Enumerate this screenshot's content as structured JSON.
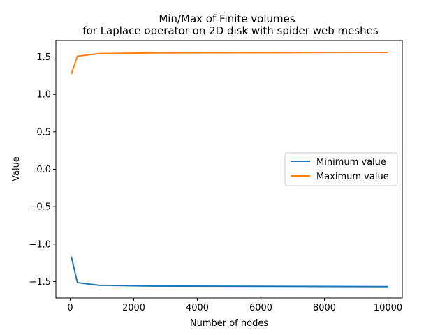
{
  "chart_data": {
    "type": "line",
    "title_line1": "Min/Max of Finite volumes",
    "title_line2": "for Laplace operator on 2D disk with spider web meshes",
    "xlabel": "Number of nodes",
    "ylabel": "Value",
    "xlim": [
      -450,
      10450
    ],
    "ylim": [
      -1.72,
      1.72
    ],
    "x_ticks": [
      0,
      2000,
      4000,
      6000,
      8000,
      10000
    ],
    "x_tick_labels": [
      "0",
      "2000",
      "4000",
      "6000",
      "8000",
      "10000"
    ],
    "y_ticks": [
      -1.5,
      -1.0,
      -0.5,
      0.0,
      0.5,
      1.0,
      1.5
    ],
    "y_tick_labels": [
      "−1.5",
      "−1.0",
      "−0.5",
      "0.0",
      "0.5",
      "1.0",
      "1.5"
    ],
    "legend_position": "center-right",
    "grid": false,
    "series": [
      {
        "name": "Minimum value",
        "color": "#1f77b4",
        "x": [
          36,
          225,
          900,
          2500,
          10000
        ],
        "y": [
          -1.165,
          -1.515,
          -1.55,
          -1.56,
          -1.568
        ]
      },
      {
        "name": "Maximum value",
        "color": "#ff7f0e",
        "x": [
          36,
          225,
          900,
          2500,
          10000
        ],
        "y": [
          1.27,
          1.51,
          1.545,
          1.555,
          1.562
        ]
      }
    ]
  }
}
